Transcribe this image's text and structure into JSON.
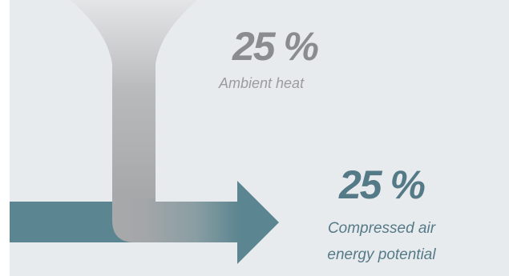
{
  "ambient": {
    "percent_label": "25 %",
    "description": "Ambient heat",
    "color": "#8a8c8f"
  },
  "compressed_air": {
    "percent_label": "25 %",
    "description_lines": [
      "Compressed air",
      "energy potential"
    ],
    "color": "#557a87"
  },
  "colors": {
    "background": "#e8ebee",
    "arrow_teal": "#5b8590",
    "funnel_gray": "#a9aaac"
  }
}
